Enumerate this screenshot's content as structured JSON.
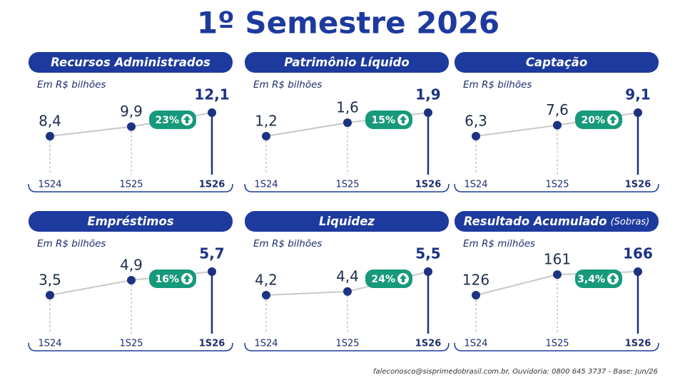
{
  "header": {
    "title": "1º Semestre 2026"
  },
  "chart_data": [
    {
      "type": "line",
      "title": "Recursos Administrados",
      "subtitle": "Em R$ bilhões",
      "categories": [
        "1S24",
        "1S25",
        "1S26"
      ],
      "values": [
        8.4,
        9.9,
        12.1
      ],
      "value_labels": [
        "8,4",
        "9,9",
        "12,1"
      ],
      "annotation": "23%",
      "color": "#1c3283"
    },
    {
      "type": "line",
      "title": "Patrimônio Líquido",
      "subtitle": "Em R$ bilhões",
      "categories": [
        "1S24",
        "1S25",
        "1S26"
      ],
      "values": [
        1.2,
        1.6,
        1.9
      ],
      "value_labels": [
        "1,2",
        "1,6",
        "1,9"
      ],
      "annotation": "15%",
      "color": "#1c3283"
    },
    {
      "type": "line",
      "title": "Captação",
      "subtitle": "Em R$ bilhões",
      "categories": [
        "1S24",
        "1S25",
        "1S26"
      ],
      "values": [
        6.3,
        7.6,
        9.1
      ],
      "value_labels": [
        "6,3",
        "7,6",
        "9,1"
      ],
      "annotation": "20%",
      "color": "#1c3283"
    },
    {
      "type": "line",
      "title": "Empréstimos",
      "subtitle": "Em R$ bilhões",
      "categories": [
        "1S24",
        "1S25",
        "1S26"
      ],
      "values": [
        3.5,
        4.9,
        5.7
      ],
      "value_labels": [
        "3,5",
        "4,9",
        "5,7"
      ],
      "annotation": "16%",
      "color": "#1c3283"
    },
    {
      "type": "line",
      "title": "Liquidez",
      "subtitle": "Em R$ bilhões",
      "categories": [
        "1S24",
        "1S25",
        "1S26"
      ],
      "values": [
        4.2,
        4.4,
        5.5
      ],
      "value_labels": [
        "4,2",
        "4,4",
        "5,5"
      ],
      "annotation": "24%",
      "color": "#1c3283"
    },
    {
      "type": "line",
      "title": "Resultado Acumulado",
      "title_note": "(Sobras)",
      "subtitle": "Em R$ milhões",
      "categories": [
        "1S24",
        "1S25",
        "1S26"
      ],
      "values": [
        126,
        161,
        166
      ],
      "annotation": "3,4%",
      "color": "#1c3283"
    }
  ],
  "footer": {
    "text": "faleconosco@sisprimedobrasil.com.br, Ouvidoria: 0800 645 3737 - Base: Jun/26"
  }
}
